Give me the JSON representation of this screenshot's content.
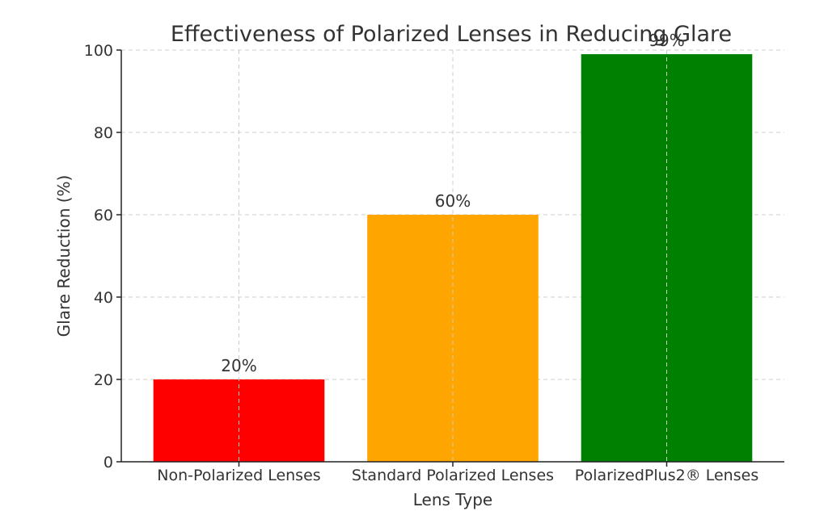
{
  "chart_data": {
    "type": "bar",
    "title": "Effectiveness of Polarized Lenses in Reducing Glare",
    "xlabel": "Lens Type",
    "ylabel": "Glare Reduction (%)",
    "categories": [
      "Non-Polarized Lenses",
      "Standard Polarized Lenses",
      "PolarizedPlus2® Lenses"
    ],
    "values": [
      20,
      60,
      99
    ],
    "value_labels": [
      "20%",
      "60%",
      "99%"
    ],
    "colors": [
      "#ff0000",
      "#ffa500",
      "#008000"
    ],
    "ylim": [
      0,
      100
    ],
    "yticks": [
      0,
      20,
      40,
      60,
      80,
      100
    ],
    "ytick_labels": [
      "0",
      "20",
      "40",
      "60",
      "80",
      "100"
    ],
    "grid": true
  }
}
